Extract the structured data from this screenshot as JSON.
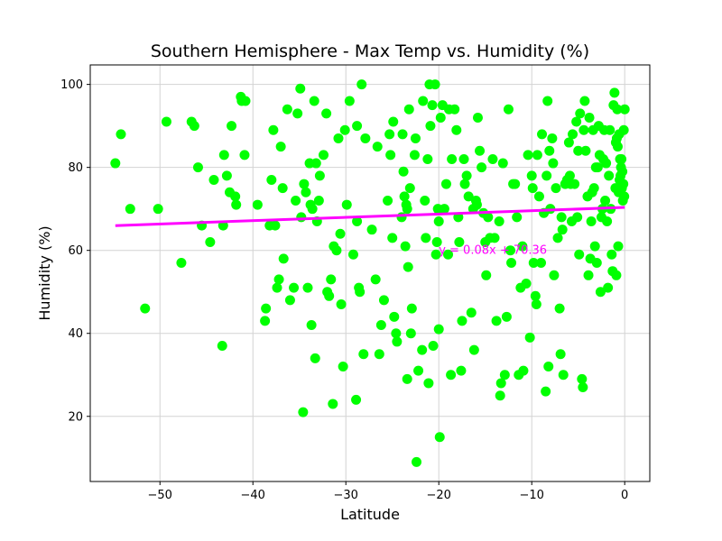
{
  "chart_data": {
    "type": "scatter",
    "title": "Southern Hemisphere - Max Temp vs. Humidity (%)",
    "xlabel": "Latitude",
    "ylabel": "Humidity (%)",
    "xlim": [
      -57.5,
      2.7
    ],
    "ylim": [
      4.3,
      104.7
    ],
    "xticks": [
      -50,
      -40,
      -30,
      -20,
      -10,
      0
    ],
    "yticks": [
      20,
      40,
      60,
      80,
      100
    ],
    "grid": true,
    "colors": {
      "points": "#00ff00",
      "regression": "#ff00ff"
    },
    "regression": {
      "equation": "y = 0.08x + 70.36",
      "slope": 0.08,
      "intercept": 70.36,
      "x_range": [
        -54.8,
        0
      ],
      "label_at": [
        -20,
        60
      ]
    },
    "points": [
      [
        -54.8,
        81
      ],
      [
        -54.2,
        88
      ],
      [
        -53.2,
        70
      ],
      [
        -51.6,
        46
      ],
      [
        -50.2,
        70
      ],
      [
        -49.3,
        91
      ],
      [
        -47.7,
        57
      ],
      [
        -46.6,
        91
      ],
      [
        -46.3,
        90
      ],
      [
        -45.9,
        80
      ],
      [
        -45.5,
        66
      ],
      [
        -44.2,
        77
      ],
      [
        -43.3,
        37
      ],
      [
        -43.2,
        66
      ],
      [
        -43.1,
        83
      ],
      [
        -42.8,
        78
      ],
      [
        -42.5,
        74
      ],
      [
        -42.3,
        90
      ],
      [
        -41.9,
        73
      ],
      [
        -41.8,
        71
      ],
      [
        -41.3,
        97
      ],
      [
        -41.2,
        96
      ],
      [
        -40.9,
        83
      ],
      [
        -40.8,
        96
      ],
      [
        -38.7,
        43
      ],
      [
        -38.6,
        46
      ],
      [
        -38.2,
        66
      ],
      [
        -38.0,
        77
      ],
      [
        -37.8,
        89
      ],
      [
        -37.6,
        66
      ],
      [
        -37.4,
        51
      ],
      [
        -37.2,
        53
      ],
      [
        -37.0,
        85
      ],
      [
        -36.8,
        75
      ],
      [
        -36.7,
        58
      ],
      [
        -36.3,
        94
      ],
      [
        -35.6,
        51
      ],
      [
        -35.4,
        72
      ],
      [
        -35.2,
        93
      ],
      [
        -34.9,
        99
      ],
      [
        -34.8,
        68
      ],
      [
        -34.6,
        21
      ],
      [
        -34.5,
        76
      ],
      [
        -34.3,
        74
      ],
      [
        -34.1,
        51
      ],
      [
        -33.9,
        81
      ],
      [
        -33.8,
        71
      ],
      [
        -33.7,
        42
      ],
      [
        -33.6,
        70
      ],
      [
        -33.4,
        96
      ],
      [
        -33.3,
        34
      ],
      [
        -33.2,
        81
      ],
      [
        -33.1,
        67
      ],
      [
        -32.9,
        72
      ],
      [
        -32.8,
        78
      ],
      [
        -32.4,
        83
      ],
      [
        -32.1,
        93
      ],
      [
        -32.0,
        50
      ],
      [
        -31.8,
        49
      ],
      [
        -31.6,
        53
      ],
      [
        -31.4,
        23
      ],
      [
        -31.3,
        61
      ],
      [
        -30.8,
        87
      ],
      [
        -30.6,
        64
      ],
      [
        -30.5,
        47
      ],
      [
        -30.3,
        32
      ],
      [
        -30.1,
        89
      ],
      [
        -29.9,
        71
      ],
      [
        -29.6,
        96
      ],
      [
        -29.2,
        59
      ],
      [
        -28.9,
        24
      ],
      [
        -28.8,
        67
      ],
      [
        -28.8,
        90
      ],
      [
        -28.6,
        51
      ],
      [
        -28.5,
        50
      ],
      [
        -28.3,
        100
      ],
      [
        -28.1,
        35
      ],
      [
        -27.9,
        87
      ],
      [
        -27.2,
        65
      ],
      [
        -26.6,
        85
      ],
      [
        -26.4,
        35
      ],
      [
        -26.2,
        42
      ],
      [
        -25.9,
        48
      ],
      [
        -25.5,
        72
      ],
      [
        -25.3,
        88
      ],
      [
        -25.2,
        83
      ],
      [
        -25.0,
        63
      ],
      [
        -24.9,
        91
      ],
      [
        -24.8,
        44
      ],
      [
        -24.6,
        40
      ],
      [
        -24.5,
        38
      ],
      [
        -23.9,
        88
      ],
      [
        -23.8,
        79
      ],
      [
        -23.7,
        73
      ],
      [
        -23.6,
        61
      ],
      [
        -23.5,
        71
      ],
      [
        -23.4,
        70
      ],
      [
        -23.4,
        29
      ],
      [
        -23.3,
        56
      ],
      [
        -23.2,
        94
      ],
      [
        -23.1,
        75
      ],
      [
        -23.0,
        40
      ],
      [
        -22.9,
        46
      ],
      [
        -22.6,
        83
      ],
      [
        -22.5,
        87
      ],
      [
        -22.4,
        9
      ],
      [
        -22.2,
        31
      ],
      [
        -21.8,
        36
      ],
      [
        -21.7,
        96
      ],
      [
        -21.5,
        72
      ],
      [
        -21.4,
        63
      ],
      [
        -21.2,
        82
      ],
      [
        -21.1,
        28
      ],
      [
        -21.0,
        100
      ],
      [
        -20.9,
        90
      ],
      [
        -20.7,
        95
      ],
      [
        -20.6,
        37
      ],
      [
        -20.4,
        100
      ],
      [
        -20.3,
        59
      ],
      [
        -20.2,
        62
      ],
      [
        -20.1,
        70
      ],
      [
        -20.0,
        67
      ],
      [
        -20.0,
        41
      ],
      [
        -19.9,
        15
      ],
      [
        -19.8,
        92
      ],
      [
        -19.6,
        95
      ],
      [
        -19.4,
        70
      ],
      [
        -19.2,
        76
      ],
      [
        -18.9,
        94
      ],
      [
        -18.7,
        30
      ],
      [
        -18.6,
        82
      ],
      [
        -18.3,
        94
      ],
      [
        -18.1,
        89
      ],
      [
        -17.9,
        68
      ],
      [
        -17.8,
        62
      ],
      [
        -17.6,
        31
      ],
      [
        -17.5,
        43
      ],
      [
        -17.3,
        82
      ],
      [
        -17.2,
        76
      ],
      [
        -17.0,
        78
      ],
      [
        -16.8,
        73
      ],
      [
        -16.5,
        45
      ],
      [
        -16.3,
        70
      ],
      [
        -16.2,
        36
      ],
      [
        -16.0,
        72
      ],
      [
        -15.8,
        92
      ],
      [
        -15.6,
        84
      ],
      [
        -15.4,
        80
      ],
      [
        -15.2,
        69
      ],
      [
        -15.0,
        62
      ],
      [
        -14.9,
        54
      ],
      [
        -14.7,
        68
      ],
      [
        -14.5,
        63
      ],
      [
        -14.2,
        82
      ],
      [
        -14.0,
        63
      ],
      [
        -13.8,
        43
      ],
      [
        -13.5,
        67
      ],
      [
        -13.4,
        25
      ],
      [
        -13.3,
        28
      ],
      [
        -13.1,
        81
      ],
      [
        -12.9,
        30
      ],
      [
        -12.7,
        44
      ],
      [
        -12.5,
        94
      ],
      [
        -12.3,
        60
      ],
      [
        -12.0,
        76
      ],
      [
        -11.8,
        76
      ],
      [
        -11.6,
        68
      ],
      [
        -11.4,
        30
      ],
      [
        -11.2,
        51
      ],
      [
        -10.9,
        31
      ],
      [
        -10.6,
        52
      ],
      [
        -10.4,
        83
      ],
      [
        -10.2,
        39
      ],
      [
        -10.0,
        78
      ],
      [
        -9.8,
        57
      ],
      [
        -9.6,
        49
      ],
      [
        -9.4,
        83
      ],
      [
        -9.2,
        73
      ],
      [
        -9.0,
        57
      ],
      [
        -8.7,
        69
      ],
      [
        -8.5,
        26
      ],
      [
        -8.4,
        78
      ],
      [
        -8.2,
        32
      ],
      [
        -8.0,
        70
      ],
      [
        -7.8,
        87
      ],
      [
        -7.6,
        54
      ],
      [
        -7.4,
        75
      ],
      [
        -7.2,
        63
      ],
      [
        -7.0,
        46
      ],
      [
        -6.8,
        68
      ],
      [
        -6.6,
        30
      ],
      [
        -6.4,
        76
      ],
      [
        -6.2,
        77
      ],
      [
        -6.0,
        86
      ],
      [
        -5.8,
        76
      ],
      [
        -5.6,
        88
      ],
      [
        -5.4,
        76
      ],
      [
        -5.2,
        91
      ],
      [
        -5.0,
        84
      ],
      [
        -4.8,
        93
      ],
      [
        -4.6,
        29
      ],
      [
        -4.5,
        27
      ],
      [
        -4.3,
        96
      ],
      [
        -4.2,
        84
      ],
      [
        -4.0,
        73
      ],
      [
        -3.8,
        92
      ],
      [
        -3.6,
        67
      ],
      [
        -3.4,
        89
      ],
      [
        -3.2,
        61
      ],
      [
        -3.0,
        57
      ],
      [
        -2.8,
        90
      ],
      [
        -2.6,
        50
      ],
      [
        -2.5,
        68
      ],
      [
        -2.4,
        70
      ],
      [
        -2.2,
        89
      ],
      [
        -2.0,
        81
      ],
      [
        -1.9,
        67
      ],
      [
        -1.7,
        78
      ],
      [
        -1.6,
        89
      ],
      [
        -1.4,
        59
      ],
      [
        -1.3,
        55
      ],
      [
        -1.2,
        95
      ],
      [
        -1.1,
        98
      ],
      [
        -1.0,
        75
      ],
      [
        -0.9,
        54
      ],
      [
        -0.8,
        94
      ],
      [
        -0.7,
        61
      ],
      [
        -0.6,
        88
      ],
      [
        -0.5,
        82
      ],
      [
        -0.4,
        80
      ],
      [
        -0.3,
        75
      ],
      [
        -0.2,
        72
      ],
      [
        -0.1,
        89
      ],
      [
        0.0,
        94
      ],
      [
        -8.3,
        96
      ],
      [
        -8.9,
        88
      ],
      [
        -8.1,
        84
      ],
      [
        -7.7,
        81
      ],
      [
        -6.9,
        35
      ],
      [
        -5.9,
        78
      ],
      [
        -5.1,
        68
      ],
      [
        -4.9,
        59
      ],
      [
        -4.4,
        89
      ],
      [
        -3.9,
        54
      ],
      [
        -3.7,
        58
      ],
      [
        -3.5,
        74
      ],
      [
        -3.3,
        75
      ],
      [
        -3.1,
        80
      ],
      [
        -2.9,
        80
      ],
      [
        -2.7,
        83
      ],
      [
        -2.3,
        82
      ],
      [
        -2.1,
        72
      ],
      [
        -1.8,
        51
      ],
      [
        -1.5,
        70
      ],
      [
        -0.95,
        86
      ],
      [
        -0.85,
        87
      ],
      [
        -0.75,
        85
      ],
      [
        -0.65,
        74
      ],
      [
        -0.55,
        77
      ],
      [
        -0.45,
        78
      ],
      [
        -0.35,
        82
      ],
      [
        -0.25,
        79
      ],
      [
        -0.15,
        76
      ],
      [
        -0.05,
        73
      ],
      [
        -9.9,
        75
      ],
      [
        -9.5,
        47
      ],
      [
        -6.7,
        65
      ],
      [
        -5.7,
        67
      ],
      [
        -12.2,
        57
      ],
      [
        -11.0,
        61
      ],
      [
        -15.9,
        71
      ],
      [
        -19.0,
        59
      ],
      [
        -24.0,
        68
      ],
      [
        -26.8,
        53
      ],
      [
        -31.0,
        60
      ],
      [
        -36.0,
        48
      ],
      [
        -39.5,
        71
      ],
      [
        -44.6,
        62
      ]
    ]
  }
}
